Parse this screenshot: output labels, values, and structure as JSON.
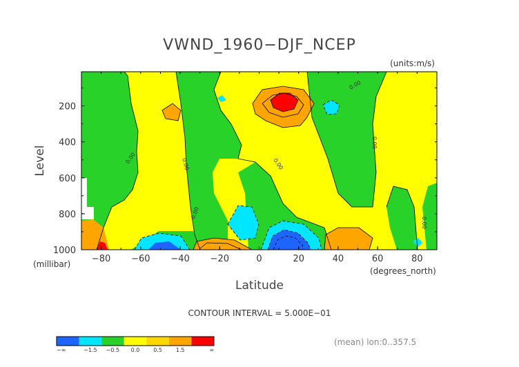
{
  "chart_data": {
    "type": "heatmap",
    "title": "VWND_1960−DJF_NCEP",
    "units_label": "(units:m/s)",
    "xlabel": "Latitude",
    "x_units": "(degrees_north)",
    "ylabel": "Level",
    "y_units": "(millibar)",
    "xlim": [
      -90,
      90
    ],
    "ylim": [
      1000,
      10
    ],
    "y_reversed": true,
    "x_ticks": [
      "−80",
      "−60",
      "−40",
      "−20",
      "0",
      "20",
      "40",
      "60",
      "80"
    ],
    "y_ticks": [
      "200",
      "400",
      "600",
      "800",
      "1000"
    ],
    "contour_interval_text": "CONTOUR INTERVAL = 5.000E−01",
    "contour_labels": [
      "0.00",
      "0.00",
      "0.00",
      "0.00",
      "0.00",
      "0.00",
      "0.00"
    ],
    "footer_text": "(mean) lon:0..357.5",
    "legend": {
      "bins": [
        {
          "color": "#1e64ff",
          "label": "−∞"
        },
        {
          "color": "#00e6ff",
          "label": "−1.5"
        },
        {
          "color": "#28d228",
          "label": "−0.5"
        },
        {
          "color": "#ffff00",
          "label": "0.0"
        },
        {
          "color": "#ffd700",
          "label": "0.5"
        },
        {
          "color": "#ffa500",
          "label": "1.5"
        },
        {
          "color": "#ff0000",
          "label": "∞"
        }
      ]
    },
    "colors": {
      "strong_negative": "#1e64ff",
      "negative": "#00e6ff",
      "weak_negative": "#28d228",
      "weak_positive": "#ffff00",
      "positive": "#ffa500",
      "strong_positive": "#ff0000"
    }
  }
}
